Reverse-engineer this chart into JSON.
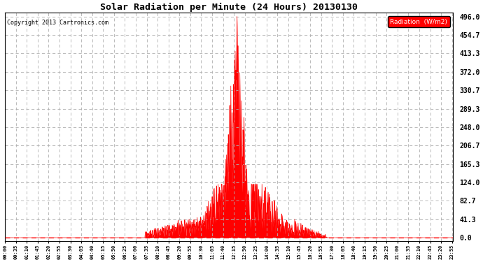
{
  "title": "Solar Radiation per Minute (24 Hours) 20130130",
  "copyright": "Copyright 2013 Cartronics.com",
  "legend_label": "Radiation  (W/m2)",
  "yticks": [
    0.0,
    41.3,
    82.7,
    124.0,
    165.3,
    206.7,
    248.0,
    289.3,
    330.7,
    372.0,
    413.3,
    454.7,
    496.0
  ],
  "ymax": 496.0,
  "fill_color": "#ff0000",
  "line_color": "#ff0000",
  "dashed_line_color": "#ff0000",
  "grid_color": "#b0b0b0",
  "background_color": "#ffffff",
  "legend_bg": "#ff0000",
  "legend_text_color": "#ffffff",
  "sunrise_minute": 450,
  "sunset_minute": 1035,
  "peak_minute": 745
}
